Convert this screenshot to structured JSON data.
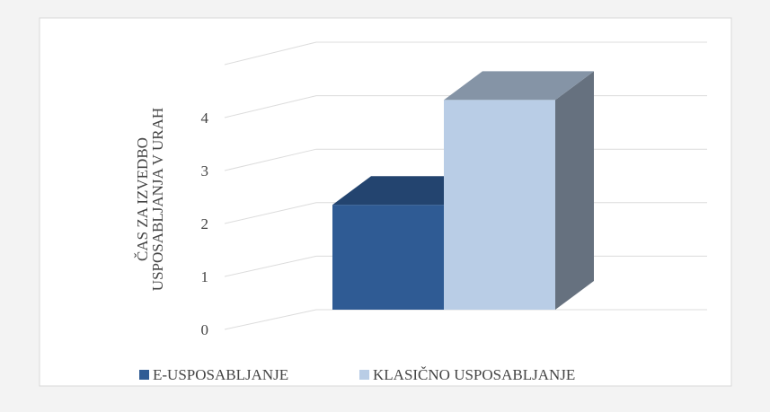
{
  "chart_data": {
    "type": "bar3d",
    "ylabel": [
      "ČAS ZA IZVEDBO",
      "USPOSABLJANJA V URAH"
    ],
    "categories": [
      null
    ],
    "series": [
      {
        "name": "E-USPOSABLJANJE",
        "color": "#2f5b94",
        "values": [
          2
        ]
      },
      {
        "name": "KLASIČNO USPOSABLJANJE",
        "color": "#b9cde6",
        "values": [
          4
        ]
      }
    ],
    "ylim": [
      0,
      5
    ],
    "yticks": [
      0,
      1,
      2,
      3,
      4
    ],
    "grid": true,
    "legend": "bottom"
  }
}
